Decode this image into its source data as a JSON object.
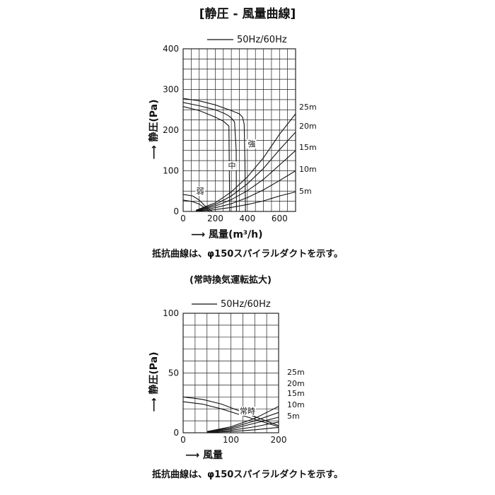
{
  "title": "[静圧 - 風量曲線]",
  "chart_data": [
    {
      "type": "line",
      "legend": "50Hz/60Hz",
      "xlabel": "風量(m³/h)",
      "ylabel": "静圧(Pa)",
      "xlim": [
        0,
        700
      ],
      "ylim": [
        0,
        400
      ],
      "xticks": [
        0,
        200,
        400,
        600
      ],
      "yticks": [
        0,
        100,
        200,
        300,
        400
      ],
      "grid": true,
      "series": [
        {
          "name": "強",
          "x": [
            0,
            100,
            200,
            300,
            350,
            370,
            380,
            385,
            388
          ],
          "y": [
            278,
            272,
            262,
            248,
            240,
            232,
            215,
            120,
            0
          ]
        },
        {
          "name": "強",
          "x": [
            0,
            100,
            200,
            250,
            280,
            300,
            320,
            330,
            332
          ],
          "y": [
            268,
            260,
            250,
            242,
            236,
            230,
            220,
            150,
            0
          ]
        },
        {
          "name": "中",
          "x": [
            0,
            100,
            150,
            200,
            250,
            285,
            290
          ],
          "y": [
            258,
            248,
            240,
            232,
            222,
            210,
            0
          ]
        },
        {
          "name": "弱",
          "x": [
            0,
            60,
            100,
            130,
            160,
            180
          ],
          "y": [
            42,
            38,
            28,
            16,
            6,
            0
          ]
        },
        {
          "name": "弱",
          "x": [
            0,
            60,
            100,
            130,
            150,
            165
          ],
          "y": [
            28,
            24,
            18,
            10,
            4,
            0
          ]
        }
      ],
      "resistance": [
        {
          "label": "25m",
          "x": [
            80,
            200,
            300,
            400,
            500,
            600,
            700
          ],
          "y": [
            3,
            21,
            48,
            85,
            132,
            190,
            240
          ]
        },
        {
          "label": "20m",
          "x": [
            80,
            200,
            300,
            400,
            500,
            600,
            700
          ],
          "y": [
            2,
            17,
            38,
            68,
            106,
            152,
            195
          ]
        },
        {
          "label": "15m",
          "x": [
            80,
            200,
            300,
            400,
            500,
            600,
            700
          ],
          "y": [
            2,
            13,
            29,
            51,
            79,
            114,
            150
          ]
        },
        {
          "label": "10m",
          "x": [
            80,
            200,
            300,
            400,
            500,
            600,
            700
          ],
          "y": [
            1,
            9,
            19,
            34,
            53,
            76,
            100
          ]
        },
        {
          "label": "5m",
          "x": [
            80,
            200,
            300,
            400,
            500,
            600,
            700
          ],
          "y": [
            0.5,
            4.5,
            10,
            17,
            26,
            38,
            48
          ]
        }
      ],
      "labels": [
        "強",
        "中",
        "弱"
      ],
      "note": "抵抗曲線は、φ150スパイラルダクトを示す。"
    },
    {
      "type": "line",
      "subtitle": "(常時換気運転拡大)",
      "legend": "50Hz/60Hz",
      "xlabel": "風量",
      "ylabel": "静圧(Pa)",
      "xlim": [
        0,
        200
      ],
      "ylim": [
        0,
        100
      ],
      "xticks": [
        0,
        100,
        200
      ],
      "yticks": [
        0,
        50,
        100
      ],
      "grid": true,
      "series": [
        {
          "name": "常時",
          "x": [
            0,
            40,
            80,
            120,
            160,
            200
          ],
          "y": [
            30,
            28,
            24,
            18,
            12,
            6
          ]
        },
        {
          "name": "常時",
          "x": [
            0,
            40,
            80,
            120,
            160,
            200
          ],
          "y": [
            26,
            24,
            20,
            15,
            10,
            5
          ]
        }
      ],
      "resistance": [
        {
          "label": "25m",
          "x": [
            50,
            100,
            150,
            200
          ],
          "y": [
            1,
            5,
            12,
            22
          ]
        },
        {
          "label": "20m",
          "x": [
            50,
            100,
            150,
            200
          ],
          "y": [
            1,
            4,
            10,
            17
          ]
        },
        {
          "label": "15m",
          "x": [
            50,
            100,
            150,
            200
          ],
          "y": [
            1,
            3,
            8,
            13
          ]
        },
        {
          "label": "10m",
          "x": [
            50,
            100,
            150,
            200
          ],
          "y": [
            0.5,
            2,
            5,
            9
          ]
        },
        {
          "label": "5m",
          "x": [
            50,
            100,
            150,
            200
          ],
          "y": [
            0.3,
            1,
            2.5,
            4.5
          ]
        }
      ],
      "labels": [
        "常時"
      ],
      "note": "抵抗曲線は、φ150スパイラルダクトを示す。"
    }
  ]
}
